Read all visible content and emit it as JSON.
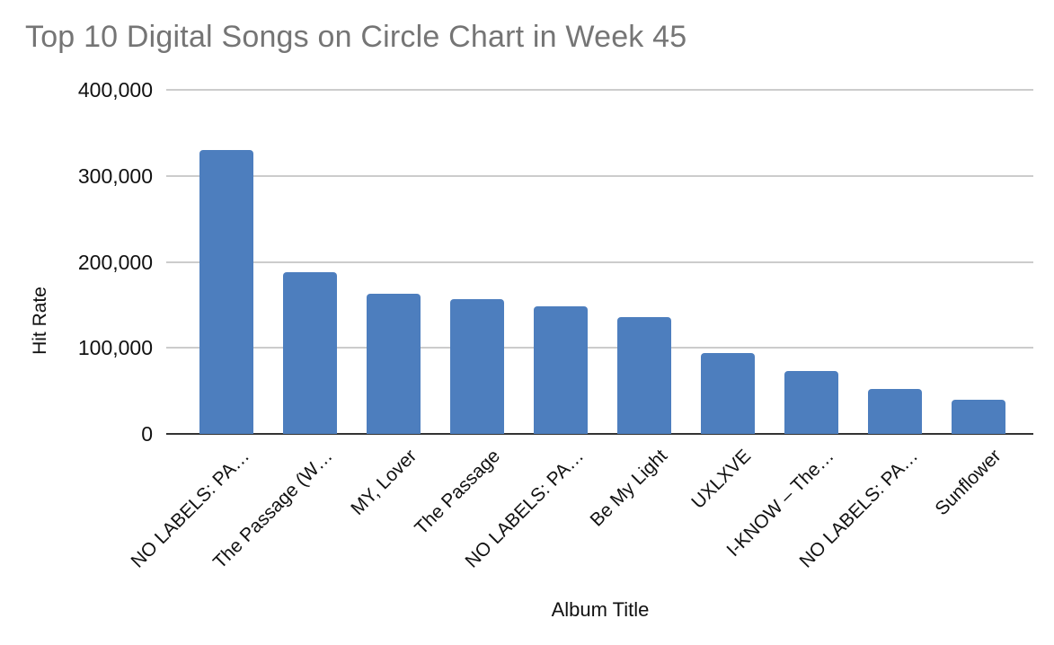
{
  "chart_data": {
    "type": "bar",
    "title": "Top 10 Digital Songs on Circle Chart in Week 45",
    "xlabel": "Album Title",
    "ylabel": "Hit Rate",
    "categories": [
      "NO LABELS: PA…",
      "The Passage (W…",
      "MY, Lover",
      "The Passage",
      "NO LABELS: PA…",
      "Be My Light",
      "UXLXVE",
      "I-KNOW – The…",
      "NO LABELS: PA…",
      "Sunflower"
    ],
    "values": [
      330000,
      188000,
      163000,
      157000,
      148000,
      136000,
      94000,
      73000,
      52000,
      40000
    ],
    "ylim": [
      0,
      400000
    ],
    "yticks": [
      0,
      100000,
      200000,
      300000,
      400000
    ],
    "ytick_labels": [
      "0",
      "100,000",
      "200,000",
      "300,000",
      "400,000"
    ],
    "grid": true,
    "legend_position": "none",
    "colors": {
      "bar": "#4d7ebe",
      "gridline": "#cccccc",
      "axis_line": "#333333",
      "title_text": "#757575",
      "tick_text": "#111111"
    }
  }
}
